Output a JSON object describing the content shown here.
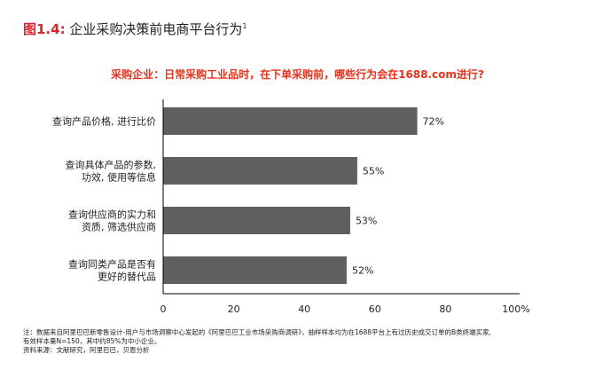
{
  "figure": {
    "label": "图1.4:",
    "title": "企业采购决策前电商平台行为",
    "superscript": "1"
  },
  "chart_data": {
    "type": "bar",
    "orientation": "horizontal",
    "title": "采购企业：日常采购工业品时，在下单采购前，哪些行为会在1688.com进行?",
    "categories": [
      [
        "查询产品价格, 进行比价"
      ],
      [
        "查询具体产品的参数,",
        "功效, 使用等信息"
      ],
      [
        "查询供应商的实力和",
        "资质, 筛选供应商"
      ],
      [
        "查询同类产品是否有",
        "更好的替代品"
      ]
    ],
    "values": [
      72,
      55,
      53,
      52
    ],
    "value_labels": [
      "72%",
      "55%",
      "53%",
      "52%"
    ],
    "xlim": [
      0,
      100
    ],
    "xticks": [
      "0",
      "20",
      "40",
      "60",
      "80",
      "100%"
    ],
    "bar_color": "#5f5f5f",
    "grid": false
  },
  "notes": {
    "line1": "注：数据来自阿里巴巴新零售设计-用户与市场洞察中心发起的《阿里巴巴工业市场采购商调研》，抽样样本均为在1688平台上有过历史成交订单的B类终端买家,",
    "line2": "有效样本量N=150，其中约85%为中小企业。",
    "line3": "资料来源：文献研究，阿里巴巴，贝恩分析"
  },
  "colors": {
    "accent": "#d8262b",
    "subtitle": "#e5331d",
    "bar": "#5f5f5f",
    "axis": "#000000"
  }
}
